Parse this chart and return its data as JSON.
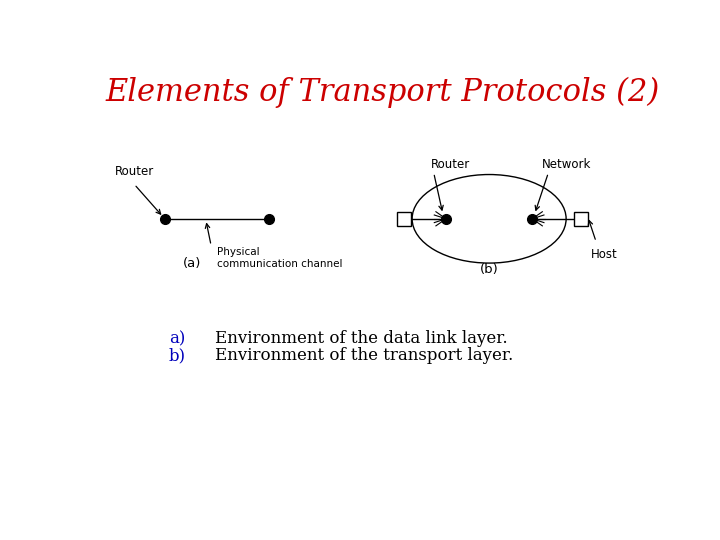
{
  "title": "Elements of Transport Protocols (2)",
  "title_color": "#cc0000",
  "title_fontsize": 22,
  "bg_color": "#ffffff",
  "label_a": "(a)",
  "label_b": "(b)",
  "item_a": "a)",
  "item_b": "b)",
  "desc_a": "Environment of the data link layer.",
  "desc_b": "Environment of the transport layer.",
  "desc_color": "#000000",
  "item_color": "#0000bb",
  "desc_fontsize": 12,
  "diagram_label_fontsize": 8.5
}
